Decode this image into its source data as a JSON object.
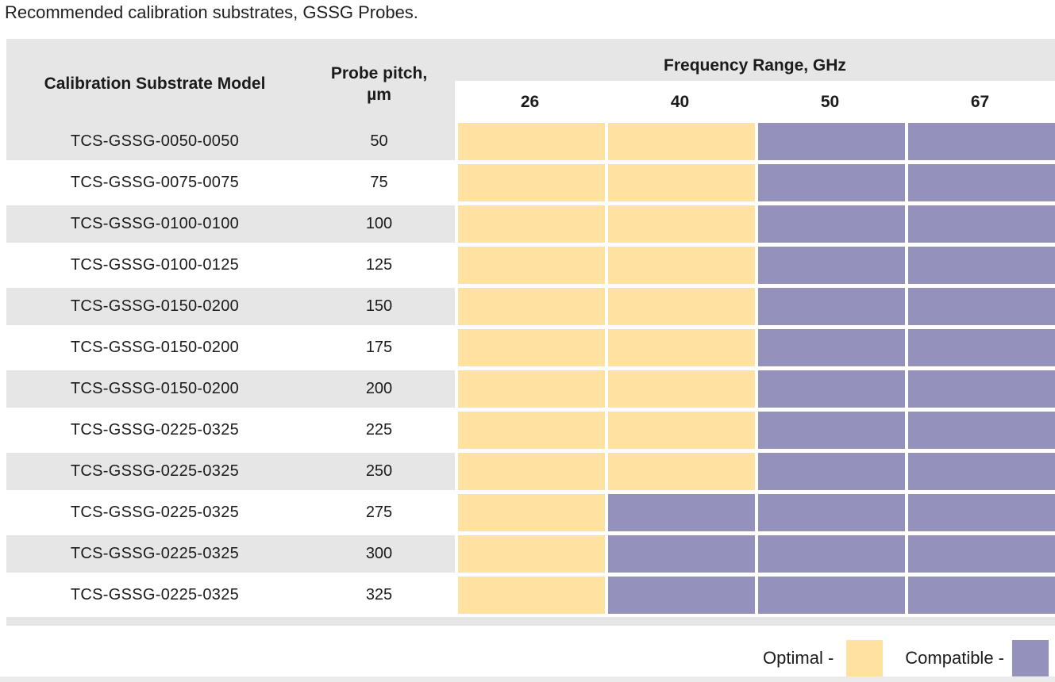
{
  "title": "Recommended calibration substrates, GSSG Probes.",
  "table": {
    "headers": {
      "model": "Calibration Substrate Model",
      "pitch_line1": "Probe pitch,",
      "pitch_line2": "µm",
      "frequency": "Frequency Range, GHz",
      "freq_cols": [
        "26",
        "40",
        "50",
        "67"
      ]
    },
    "rows": [
      {
        "model": "TCS-GSSG-0050-0050",
        "pitch": "50",
        "cells": [
          "optimal",
          "optimal",
          "compatible",
          "compatible"
        ]
      },
      {
        "model": "TCS-GSSG-0075-0075",
        "pitch": "75",
        "cells": [
          "optimal",
          "optimal",
          "compatible",
          "compatible"
        ]
      },
      {
        "model": "TCS-GSSG-0100-0100",
        "pitch": "100",
        "cells": [
          "optimal",
          "optimal",
          "compatible",
          "compatible"
        ]
      },
      {
        "model": "TCS-GSSG-0100-0125",
        "pitch": "125",
        "cells": [
          "optimal",
          "optimal",
          "compatible",
          "compatible"
        ]
      },
      {
        "model": "TCS-GSSG-0150-0200",
        "pitch": "150",
        "cells": [
          "optimal",
          "optimal",
          "compatible",
          "compatible"
        ]
      },
      {
        "model": "TCS-GSSG-0150-0200",
        "pitch": "175",
        "cells": [
          "optimal",
          "optimal",
          "compatible",
          "compatible"
        ]
      },
      {
        "model": "TCS-GSSG-0150-0200",
        "pitch": "200",
        "cells": [
          "optimal",
          "optimal",
          "compatible",
          "compatible"
        ]
      },
      {
        "model": "TCS-GSSG-0225-0325",
        "pitch": "225",
        "cells": [
          "optimal",
          "optimal",
          "compatible",
          "compatible"
        ]
      },
      {
        "model": "TCS-GSSG-0225-0325",
        "pitch": "250",
        "cells": [
          "optimal",
          "optimal",
          "compatible",
          "compatible"
        ]
      },
      {
        "model": "TCS-GSSG-0225-0325",
        "pitch": "275",
        "cells": [
          "optimal",
          "compatible",
          "compatible",
          "compatible"
        ]
      },
      {
        "model": "TCS-GSSG-0225-0325",
        "pitch": "300",
        "cells": [
          "optimal",
          "compatible",
          "compatible",
          "compatible"
        ]
      },
      {
        "model": "TCS-GSSG-0225-0325",
        "pitch": "325",
        "cells": [
          "optimal",
          "compatible",
          "compatible",
          "compatible"
        ]
      }
    ]
  },
  "legend": {
    "optimal_label": "Optimal -",
    "compatible_label": "Compatible -"
  },
  "colors": {
    "optimal": "#FFE2A2",
    "compatible": "#9492BC"
  }
}
